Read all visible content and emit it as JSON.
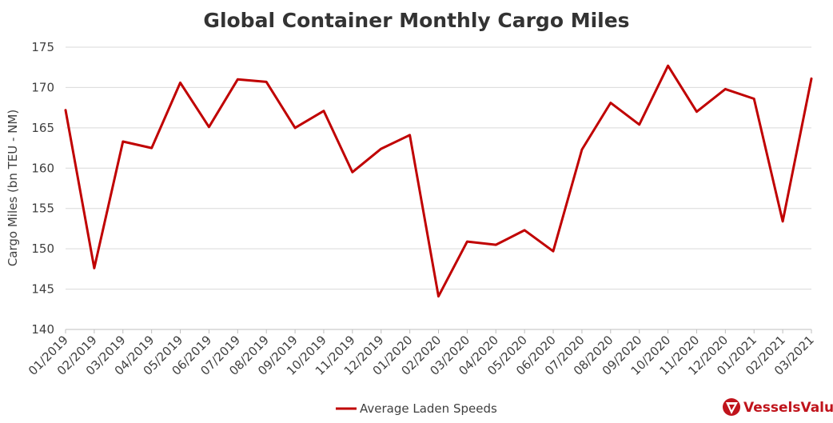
{
  "chart_data": {
    "type": "line",
    "title": "Global Container Monthly Cargo Miles",
    "ylabel": "Cargo Miles (bn TEU - NM)",
    "xlabel": "",
    "ylim": [
      140,
      175
    ],
    "yticks": [
      "140",
      "145",
      "150",
      "155",
      "160",
      "165",
      "170",
      "175"
    ],
    "categories": [
      "01/2019",
      "02/2019",
      "03/2019",
      "04/2019",
      "05/2019",
      "06/2019",
      "07/2019",
      "08/2019",
      "09/2019",
      "10/2019",
      "11/2019",
      "12/2019",
      "01/2020",
      "02/2020",
      "03/2020",
      "04/2020",
      "05/2020",
      "06/2020",
      "07/2020",
      "08/2020",
      "09/2020",
      "10/2020",
      "11/2020",
      "12/2020",
      "01/2021",
      "02/2021",
      "03/2021"
    ],
    "series": [
      {
        "name": "Average Laden Speeds",
        "color": "#c00000",
        "values": [
          167.2,
          147.6,
          163.3,
          162.5,
          170.6,
          165.1,
          171.0,
          170.7,
          165.0,
          167.1,
          159.5,
          162.4,
          164.1,
          144.1,
          150.9,
          150.5,
          152.3,
          149.7,
          162.3,
          168.1,
          165.4,
          172.7,
          167.0,
          169.8,
          168.6,
          153.4,
          171.1
        ]
      }
    ],
    "grid": "horizontal",
    "legend_position": "bottom-center"
  },
  "brand": {
    "name": "VesselsValue",
    "color": "#c0141c",
    "icon": "vesselsvalue-logo-icon"
  },
  "colors": {
    "grid": "#d9d9d9",
    "axis": "#bfbfbf",
    "text": "#404040"
  }
}
